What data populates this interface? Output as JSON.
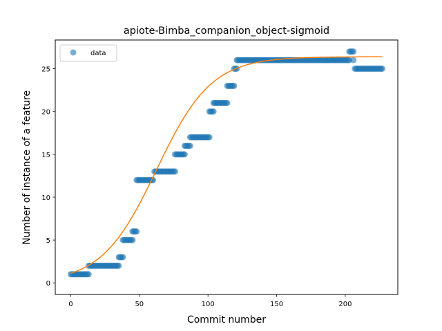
{
  "chart_data": {
    "type": "scatter",
    "title": "apiote-Bimba_companion_object-sigmoid",
    "xlabel": "Commit number",
    "ylabel": "Number of instance of a feature",
    "xlim": [
      -11.3,
      238.3
    ],
    "ylim": [
      -1.35,
      28.35
    ],
    "xticks": [
      0,
      50,
      100,
      150,
      200
    ],
    "yticks": [
      0,
      5,
      10,
      15,
      20,
      25
    ],
    "grid": false,
    "legend_position": "top-left",
    "series": [
      {
        "name": "data",
        "kind": "scatter",
        "color": "#1f77b4",
        "alpha": 0.6,
        "segments": [
          {
            "x_start": 0,
            "x_end": 13,
            "y": 1
          },
          {
            "x_start": 13,
            "x_end": 35,
            "y": 2
          },
          {
            "x_start": 35,
            "x_end": 38,
            "y": 3
          },
          {
            "x_start": 38,
            "x_end": 45,
            "y": 5
          },
          {
            "x_start": 45,
            "x_end": 48,
            "y": 6
          },
          {
            "x_start": 48,
            "x_end": 60,
            "y": 12
          },
          {
            "x_start": 61,
            "x_end": 76,
            "y": 13
          },
          {
            "x_start": 76,
            "x_end": 83,
            "y": 15
          },
          {
            "x_start": 83,
            "x_end": 87,
            "y": 16
          },
          {
            "x_start": 87,
            "x_end": 101,
            "y": 17
          },
          {
            "x_start": 101,
            "x_end": 104,
            "y": 20
          },
          {
            "x_start": 104,
            "x_end": 114,
            "y": 21
          },
          {
            "x_start": 114,
            "x_end": 119,
            "y": 23
          },
          {
            "x_start": 119,
            "x_end": 121,
            "y": 25
          },
          {
            "x_start": 121,
            "x_end": 203,
            "y": 26
          },
          {
            "x_start": 203,
            "x_end": 206,
            "y": 27
          },
          {
            "x_start": 206,
            "x_end": 206,
            "y": 26
          },
          {
            "x_start": 207,
            "x_end": 227,
            "y": 25
          }
        ]
      },
      {
        "name": "",
        "kind": "line",
        "color": "#ff7f0e",
        "function": "sigmoid",
        "params": {
          "L": 26.4,
          "x0": 62.5,
          "k": 0.05
        },
        "x_range": [
          0,
          227
        ]
      }
    ]
  }
}
